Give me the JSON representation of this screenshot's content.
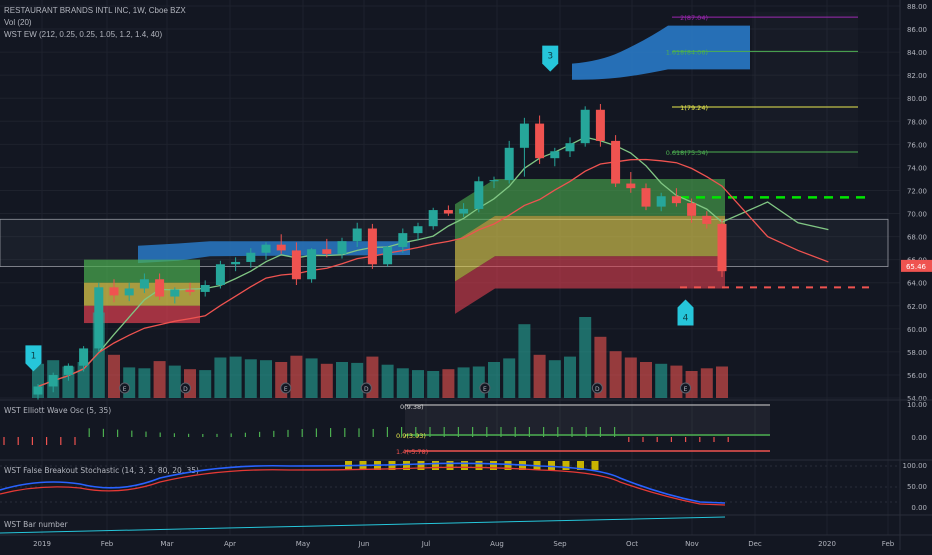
{
  "header": {
    "symbol_line": "RESTAURANT BRANDS INTL INC, 1W, Cboe BZX",
    "vol_label": "Vol (20)",
    "ew_label": "WST EW (212, 0.25, 0.25, 1.05, 1.2, 1.4, 40)"
  },
  "colors": {
    "background": "#131722",
    "grid": "#1e222d",
    "up": "#26a69a",
    "down": "#ef5350",
    "accent": "#2196f3",
    "zone_green": "#4caf50",
    "zone_yellow": "#e8d44d",
    "zone_red": "#e04050"
  },
  "price_axis": {
    "labels": [
      "54.00",
      "56.00",
      "58.00",
      "60.00",
      "62.00",
      "64.00",
      "66.00",
      "68.00",
      "70.00",
      "72.00",
      "74.00",
      "76.00",
      "78.00",
      "80.00",
      "82.00",
      "84.00",
      "86.00",
      "88.00"
    ],
    "last_price": "65.46"
  },
  "time_axis": {
    "labels": [
      "2019",
      "Feb",
      "Mar",
      "Apr",
      "May",
      "Jun",
      "Jul",
      "Aug",
      "Sep",
      "Oct",
      "Nov",
      "Dec",
      "2020",
      "Feb"
    ]
  },
  "levels": [
    {
      "label": "2(87.04)",
      "value": 87.04,
      "color": "#9c27b0"
    },
    {
      "label": "1.618(84.06)",
      "value": 84.06,
      "color": "#4caf50"
    },
    {
      "label": "1(79.24)",
      "value": 79.24,
      "color": "#e8e84d"
    },
    {
      "label": "0.618(75.34)",
      "value": 75.34,
      "color": "#4caf50"
    }
  ],
  "wave_markers": [
    {
      "label": "1",
      "type": "down"
    },
    {
      "label": "3",
      "type": "down"
    },
    {
      "label": "4",
      "type": "up"
    }
  ],
  "event_markers": [
    "E",
    "D",
    "E",
    "D",
    "E",
    "D",
    "E"
  ],
  "panels": {
    "osc": {
      "title": "WST Elliott Wave Osc (5, 35)",
      "axis": [
        "10.00",
        "0.00"
      ],
      "labels": [
        "0(9.38)",
        "0.9(3.93)",
        "1.4(-5.78)"
      ]
    },
    "stoch": {
      "title": "WST False Breakout Stochastic (14, 3, 3, 80, 20, 35)",
      "axis": [
        "100.00",
        "50.00",
        "0.00"
      ]
    },
    "bar": {
      "title": "WST Bar number"
    }
  },
  "chart_data": {
    "type": "candlestick",
    "x": [
      "2019-01-04",
      "2019-01-11",
      "2019-01-18",
      "2019-01-25",
      "2019-02-01",
      "2019-02-08",
      "2019-02-15",
      "2019-02-22",
      "2019-03-01",
      "2019-03-08",
      "2019-03-15",
      "2019-03-22",
      "2019-03-29",
      "2019-04-05",
      "2019-04-12",
      "2019-04-19",
      "2019-04-26",
      "2019-05-03",
      "2019-05-10",
      "2019-05-17",
      "2019-05-24",
      "2019-05-31",
      "2019-06-07",
      "2019-06-14",
      "2019-06-21",
      "2019-06-28",
      "2019-07-05",
      "2019-07-12",
      "2019-07-19",
      "2019-07-26",
      "2019-08-02",
      "2019-08-09",
      "2019-08-16",
      "2019-08-23",
      "2019-08-30",
      "2019-09-06",
      "2019-09-13",
      "2019-09-20",
      "2019-09-27",
      "2019-10-04",
      "2019-10-11",
      "2019-10-18",
      "2019-10-25",
      "2019-11-01",
      "2019-11-08",
      "2019-11-15"
    ],
    "ohlc": [
      [
        54.3,
        55.2,
        53.8,
        55.0
      ],
      [
        55.0,
        56.2,
        54.5,
        56.0
      ],
      [
        56.0,
        57.0,
        55.5,
        56.8
      ],
      [
        56.8,
        58.5,
        56.3,
        58.3
      ],
      [
        58.3,
        64.0,
        58.0,
        63.6
      ],
      [
        63.6,
        64.3,
        62.3,
        62.9
      ],
      [
        62.9,
        64.0,
        62.4,
        63.5
      ],
      [
        63.5,
        64.8,
        63.1,
        64.3
      ],
      [
        64.3,
        64.8,
        62.5,
        62.8
      ],
      [
        62.8,
        63.6,
        62.2,
        63.4
      ],
      [
        63.4,
        64.0,
        62.9,
        63.2
      ],
      [
        63.2,
        64.2,
        62.8,
        63.8
      ],
      [
        63.8,
        65.9,
        63.5,
        65.6
      ],
      [
        65.6,
        66.2,
        65.0,
        65.8
      ],
      [
        65.8,
        67.0,
        65.3,
        66.6
      ],
      [
        66.6,
        67.5,
        66.0,
        67.3
      ],
      [
        67.3,
        68.2,
        66.5,
        66.8
      ],
      [
        66.8,
        67.5,
        63.8,
        64.3
      ],
      [
        64.3,
        67.0,
        64.0,
        66.9
      ],
      [
        66.9,
        67.8,
        66.2,
        66.5
      ],
      [
        66.5,
        67.9,
        66.1,
        67.6
      ],
      [
        67.6,
        69.2,
        67.1,
        68.7
      ],
      [
        68.7,
        69.1,
        65.2,
        65.6
      ],
      [
        65.6,
        67.2,
        65.4,
        67.1
      ],
      [
        67.1,
        68.7,
        66.6,
        68.3
      ],
      [
        68.3,
        69.2,
        67.7,
        68.9
      ],
      [
        68.9,
        70.5,
        68.6,
        70.3
      ],
      [
        70.3,
        70.7,
        69.8,
        70.0
      ],
      [
        70.0,
        70.9,
        69.7,
        70.4
      ],
      [
        70.4,
        73.2,
        70.1,
        72.8
      ],
      [
        72.8,
        73.2,
        72.2,
        72.9
      ],
      [
        72.9,
        76.3,
        72.6,
        75.7
      ],
      [
        75.7,
        78.3,
        73.2,
        77.8
      ],
      [
        77.8,
        78.5,
        74.3,
        74.8
      ],
      [
        74.8,
        75.7,
        74.1,
        75.4
      ],
      [
        75.4,
        76.6,
        74.9,
        76.1
      ],
      [
        76.1,
        79.3,
        75.8,
        79.0
      ],
      [
        79.0,
        79.5,
        75.8,
        76.3
      ],
      [
        76.3,
        76.8,
        72.3,
        72.6
      ],
      [
        72.6,
        73.6,
        71.8,
        72.2
      ],
      [
        72.2,
        72.6,
        70.3,
        70.6
      ],
      [
        70.6,
        71.8,
        70.2,
        71.5
      ],
      [
        71.5,
        72.2,
        70.6,
        70.9
      ],
      [
        70.9,
        71.3,
        69.2,
        69.8
      ],
      [
        69.8,
        70.2,
        68.7,
        69.1
      ],
      [
        69.1,
        69.5,
        64.5,
        65.0
      ]
    ],
    "volume": [
      38,
      42,
      35,
      40,
      95,
      48,
      34,
      33,
      41,
      36,
      32,
      31,
      45,
      46,
      43,
      42,
      40,
      47,
      44,
      38,
      40,
      39,
      46,
      37,
      33,
      31,
      30,
      32,
      34,
      35,
      40,
      44,
      82,
      48,
      42,
      46,
      90,
      68,
      52,
      45,
      40,
      38,
      36,
      30,
      33,
      35
    ],
    "ylim": [
      54,
      88
    ]
  }
}
